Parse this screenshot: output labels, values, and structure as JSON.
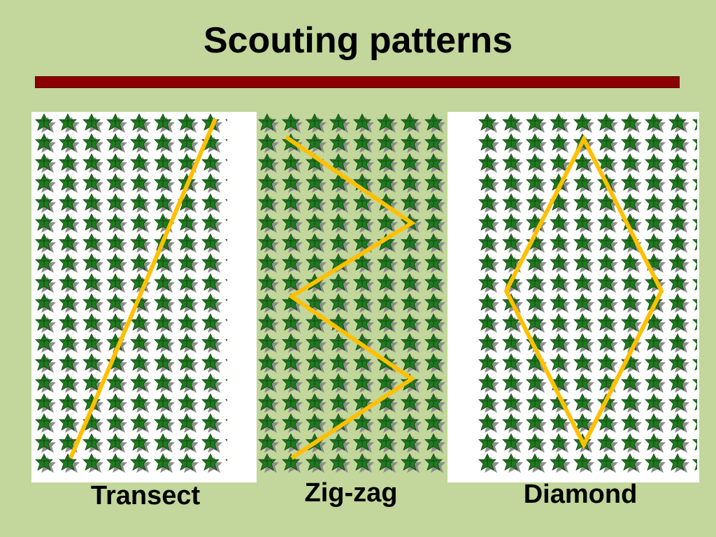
{
  "slide": {
    "title": "Scouting patterns",
    "accent_rule_color": "#8b0000",
    "background_color": "#c3d69b"
  },
  "panels": [
    {
      "id": "transect",
      "caption": "Transect"
    },
    {
      "id": "zigzag",
      "caption": "Zig-zag"
    },
    {
      "id": "diamond",
      "caption": "Diamond"
    }
  ],
  "crop_field": {
    "plant_icon": "leaf-plant-icon",
    "leaf_color": "#1f7a1f",
    "shadow_color": "#8c8c8c"
  },
  "scouting_path": {
    "color": "#ffc000"
  }
}
